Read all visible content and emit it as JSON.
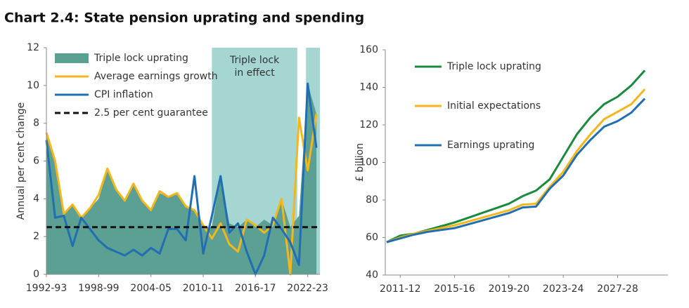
{
  "title": "Chart 2.4: State pension uprating and spending",
  "chart_data": [
    {
      "type": "line",
      "ylabel": "Annual per cent change",
      "x": [
        1992,
        1993,
        1994,
        1995,
        1996,
        1997,
        1998,
        1999,
        2000,
        2001,
        2002,
        2003,
        2004,
        2005,
        2006,
        2007,
        2008,
        2009,
        2010,
        2011,
        2012,
        2013,
        2014,
        2015,
        2016,
        2017,
        2018,
        2019,
        2020,
        2021,
        2022,
        2023
      ],
      "xlim": [
        1992,
        2023.4
      ],
      "xticks": [
        {
          "value": 1992,
          "label": "1992-93"
        },
        {
          "value": 1998,
          "label": "1998-99"
        },
        {
          "value": 2004,
          "label": "2004-05"
        },
        {
          "value": 2010,
          "label": "2010-11"
        },
        {
          "value": 2016,
          "label": "2016-17"
        },
        {
          "value": 2022,
          "label": "2022-23"
        }
      ],
      "ylim": [
        0,
        12
      ],
      "yticks": [
        0,
        2,
        4,
        6,
        8,
        10,
        12
      ],
      "shaded_spans": [
        [
          2011,
          2020.8
        ],
        [
          2021.8,
          2023.4
        ]
      ],
      "span_color": "#a6d6d2",
      "annotation_lines": [
        "Triple lock",
        "in effect"
      ],
      "series": [
        {
          "name": "Triple lock uprating",
          "kind": "area",
          "color": "#5c9f93",
          "values": [
            7.5,
            6.0,
            3.2,
            3.7,
            3.0,
            3.5,
            4.0,
            5.5,
            4.5,
            3.9,
            4.8,
            3.9,
            3.4,
            4.3,
            4.1,
            4.3,
            3.6,
            3.4,
            2.5,
            2.5,
            5.2,
            2.7,
            2.5,
            2.9,
            2.5,
            2.9,
            2.6,
            4.0,
            2.5,
            3.1,
            10.1,
            8.5
          ]
        },
        {
          "name": "Average earnings growth",
          "kind": "line",
          "color": "#f2b71c",
          "values": [
            7.5,
            6.0,
            3.2,
            3.7,
            3.0,
            3.5,
            4.2,
            5.6,
            4.5,
            3.9,
            4.8,
            3.9,
            3.4,
            4.4,
            4.1,
            4.3,
            3.6,
            3.4,
            2.6,
            1.9,
            2.7,
            1.6,
            1.2,
            2.9,
            2.6,
            2.2,
            2.6,
            4.0,
            0.0,
            8.3,
            5.5,
            8.5
          ]
        },
        {
          "name": "CPI inflation",
          "kind": "line",
          "color": "#1f6fb2",
          "values": [
            7.1,
            3.0,
            3.1,
            1.5,
            3.0,
            2.4,
            1.8,
            1.4,
            1.2,
            1.0,
            1.3,
            1.0,
            1.4,
            1.1,
            2.4,
            2.4,
            1.8,
            5.2,
            1.1,
            3.1,
            5.2,
            2.2,
            2.7,
            1.2,
            0.0,
            1.0,
            3.0,
            2.4,
            1.7,
            0.5,
            10.1,
            6.7
          ]
        },
        {
          "name": "2.5 per cent guarantee",
          "kind": "hline",
          "color": "#111111",
          "value": 2.5
        }
      ]
    },
    {
      "type": "line",
      "ylabel": "£ billion",
      "x": [
        2010,
        2011,
        2012,
        2013,
        2014,
        2015,
        2016,
        2017,
        2018,
        2019,
        2020,
        2021,
        2022,
        2023,
        2024,
        2025,
        2026,
        2027,
        2028,
        2029
      ],
      "xlim": [
        2009.9,
        2030.7
      ],
      "xticks": [
        {
          "value": 2011,
          "label": "2011-12"
        },
        {
          "value": 2015,
          "label": "2015-16"
        },
        {
          "value": 2019,
          "label": "2019-20"
        },
        {
          "value": 2023,
          "label": "2023-24"
        },
        {
          "value": 2027,
          "label": "2027-28"
        }
      ],
      "ylim": [
        40,
        160
      ],
      "yticks": [
        40,
        60,
        80,
        100,
        120,
        140,
        160
      ],
      "series": [
        {
          "name": "Triple lock uprating",
          "kind": "line",
          "color": "#1a8a3e",
          "values": [
            57.5,
            61,
            62,
            64,
            66,
            68,
            70.5,
            73,
            75.5,
            78,
            82,
            85,
            91,
            103,
            115,
            124,
            131,
            135,
            141,
            149
          ]
        },
        {
          "name": "Initial expectations",
          "kind": "line",
          "color": "#f2b71c",
          "values": [
            57.5,
            60,
            62,
            63.5,
            65,
            66.5,
            68.5,
            70.5,
            72.5,
            74.5,
            77.5,
            78,
            87,
            95,
            106,
            115,
            123,
            127,
            131,
            139
          ]
        },
        {
          "name": "Earnings uprating",
          "kind": "line",
          "color": "#1f6fb2",
          "values": [
            57.5,
            59.5,
            61.5,
            63,
            64,
            65,
            67,
            69,
            71,
            73,
            76,
            76.5,
            86,
            93,
            104,
            112,
            119,
            122,
            126.5,
            134
          ]
        }
      ]
    }
  ]
}
